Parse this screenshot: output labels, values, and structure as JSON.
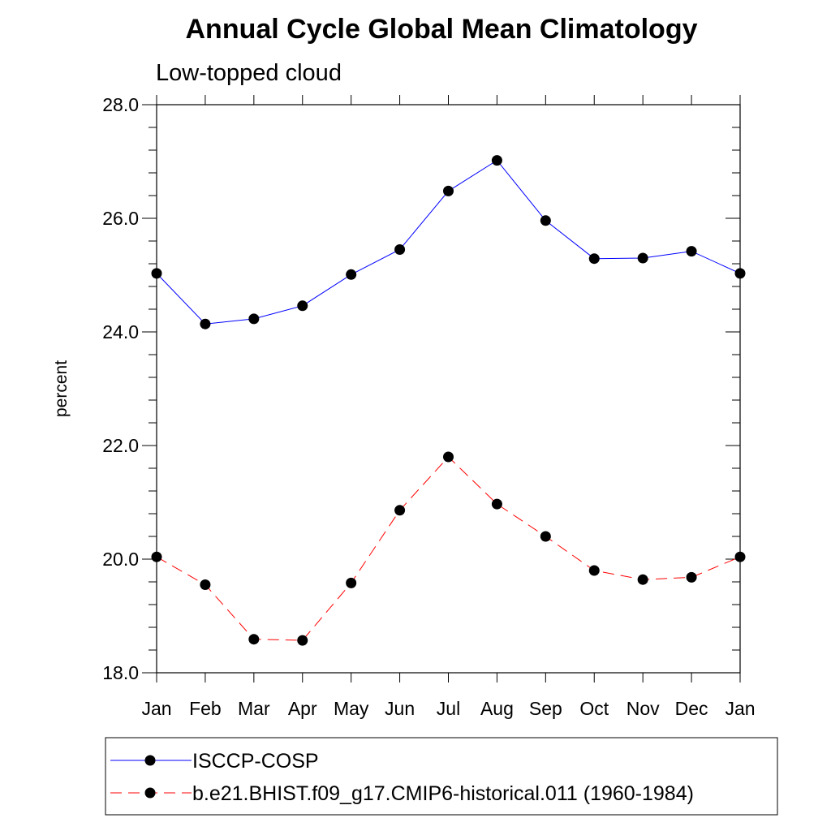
{
  "chart_data": {
    "type": "line",
    "title": "Annual Cycle Global Mean Climatology",
    "subtitle": "Low-topped cloud",
    "xlabel": "",
    "ylabel": "percent",
    "ylim": [
      18.0,
      28.0
    ],
    "yticks": [
      "18.0",
      "20.0",
      "22.0",
      "24.0",
      "26.0",
      "28.0"
    ],
    "yticks_values": [
      18,
      20,
      22,
      24,
      26,
      28
    ],
    "categories": [
      "Jan",
      "Feb",
      "Mar",
      "Apr",
      "May",
      "Jun",
      "Jul",
      "Aug",
      "Sep",
      "Oct",
      "Nov",
      "Dec",
      "Jan"
    ],
    "grid": false,
    "legend_position": "bottom",
    "series": [
      {
        "name": "ISCCP-COSP",
        "color": "#0000ff",
        "style": "solid",
        "marker": "circle",
        "values": [
          25.03,
          24.14,
          24.23,
          24.46,
          25.01,
          25.45,
          26.48,
          27.02,
          25.96,
          25.29,
          25.3,
          25.42,
          25.03
        ]
      },
      {
        "name": "b.e21.BHIST.f09_g17.CMIP6-historical.011 (1960-1984)",
        "color": "#ff0000",
        "style": "dashed",
        "marker": "circle",
        "values": [
          20.04,
          19.55,
          18.59,
          18.57,
          19.58,
          20.86,
          21.8,
          20.97,
          20.4,
          19.8,
          19.64,
          19.68,
          20.04
        ]
      }
    ]
  }
}
